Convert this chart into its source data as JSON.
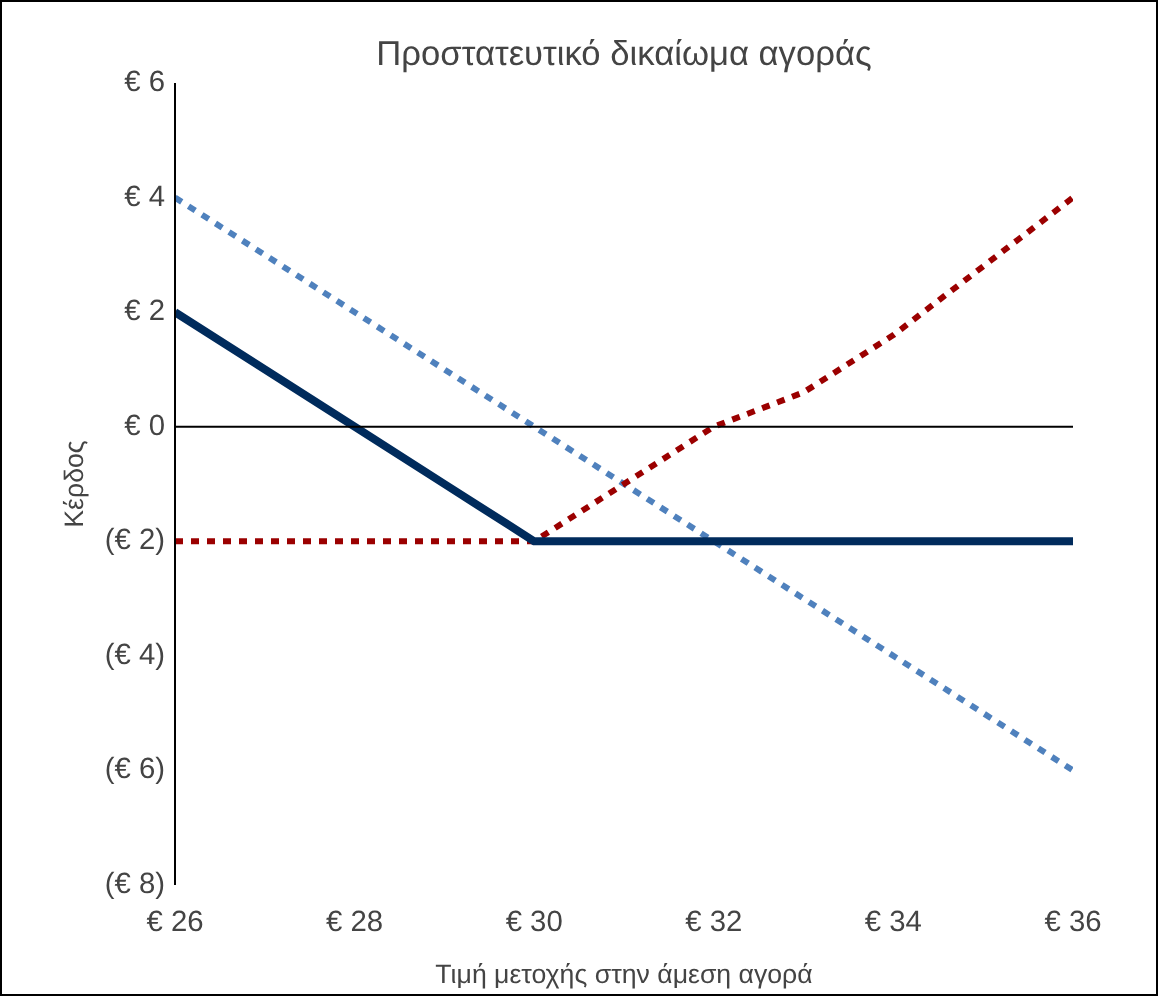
{
  "chart_data": {
    "type": "line",
    "title": "Προστατευτικό δικαίωμα αγοράς",
    "xlabel": "Τιμή μετοχής στην άμεση αγορά",
    "ylabel": "Κέρδος",
    "xlim": [
      26,
      36
    ],
    "xticks": [
      {
        "value": 26,
        "label": "€ 26"
      },
      {
        "value": 28,
        "label": "€ 28"
      },
      {
        "value": 30,
        "label": "€ 30"
      },
      {
        "value": 32,
        "label": "€ 32"
      },
      {
        "value": 34,
        "label": "€ 34"
      },
      {
        "value": 36,
        "label": "€ 36"
      }
    ],
    "ylim": [
      -8,
      6
    ],
    "yticks": [
      {
        "value": 6,
        "label": "€ 6"
      },
      {
        "value": 4,
        "label": "€ 4"
      },
      {
        "value": 2,
        "label": "€ 2"
      },
      {
        "value": 0,
        "label": "€ 0"
      },
      {
        "value": -2,
        "label": "(€ 2)"
      },
      {
        "value": -4,
        "label": "(€ 4)"
      },
      {
        "value": -6,
        "label": "(€ 6)"
      },
      {
        "value": -8,
        "label": "(€ 8)"
      }
    ],
    "grid": false,
    "ref_lines": [
      {
        "axis": "y",
        "value": 0,
        "color": "#000000"
      }
    ],
    "series": [
      {
        "color": "#4f81bd",
        "line_style": "dotted",
        "x": [
          26,
          30,
          32,
          36
        ],
        "values": [
          4,
          0,
          -2,
          -6
        ]
      },
      {
        "color": "#9b0000",
        "line_style": "dotted",
        "x": [
          26,
          30,
          31,
          32,
          33,
          34,
          35,
          36
        ],
        "values": [
          -2,
          -2,
          -1,
          0,
          0.6,
          1.6,
          2.8,
          4
        ]
      },
      {
        "color": "#002b5c",
        "line_style": "solid",
        "x": [
          26,
          27,
          28,
          29,
          30,
          36
        ],
        "values": [
          2,
          1,
          0,
          -1,
          -2,
          -2
        ]
      }
    ]
  }
}
